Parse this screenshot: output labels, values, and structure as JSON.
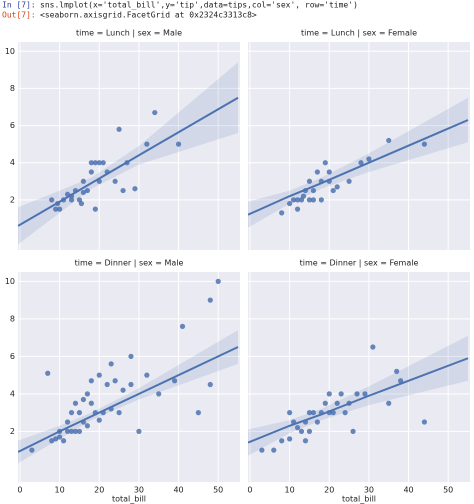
{
  "header": {
    "input_prompt": "In [7]:",
    "input_code": "sns.lmplot(x='total_bill',y='tip',data=tips,col='sex', row='time')",
    "output_prompt": "Out[7]:",
    "output_text": "<seaborn.axisgrid.FacetGrid at 0x2324c3313c8>"
  },
  "chart_data": {
    "type": "scatter",
    "xlabel": "total_bill",
    "color": "#4c72b0",
    "grid": true,
    "xlim": [
      -0.5,
      55.5
    ],
    "ylim": [
      -0.7,
      10.5
    ],
    "xticks": [
      0,
      10,
      20,
      30,
      40,
      50
    ],
    "yticks": [
      2,
      4,
      6,
      8,
      10
    ],
    "panels": [
      {
        "title": "time = Lunch | sex = Male",
        "x": [
          8,
          9,
          9.5,
          10,
          11,
          12,
          13,
          13,
          14,
          15,
          15.5,
          16,
          17,
          18,
          18,
          19,
          20,
          21,
          20,
          22,
          24,
          25,
          26,
          27,
          29,
          32,
          34,
          40,
          19,
          16
        ],
        "y": [
          2,
          1.5,
          1.8,
          1.5,
          2,
          2.3,
          2,
          2.2,
          2.5,
          2,
          1.8,
          3,
          2.5,
          4,
          3.5,
          4,
          4,
          4,
          3,
          3.5,
          3,
          5.8,
          2.5,
          4,
          2.6,
          5,
          6.7,
          5,
          1.5,
          2.4
        ],
        "fit_x": [
          -0.5,
          10,
          18,
          30,
          55
        ],
        "fit_y": [
          0.6,
          1.9,
          2.9,
          4.4,
          7.5
        ],
        "band_lower": [
          -0.4,
          1.3,
          2.6,
          3.9,
          5.6
        ],
        "band_upper": [
          1.6,
          2.5,
          3.2,
          4.9,
          9.4
        ]
      },
      {
        "title": "time = Lunch | sex = Female",
        "x": [
          8,
          10,
          11,
          12,
          12,
          13,
          13.5,
          14,
          15,
          15,
          16,
          16,
          17,
          18,
          18,
          19,
          20,
          21,
          20,
          22,
          25,
          28,
          30,
          35,
          44
        ],
        "y": [
          1.3,
          1.8,
          2,
          1.5,
          2,
          2,
          2.2,
          2.5,
          2,
          3,
          2,
          2.5,
          3.5,
          3,
          2,
          4,
          3,
          2.5,
          3.5,
          2.7,
          3,
          4,
          4.2,
          5.2,
          5
        ],
        "fit_x": [
          -0.5,
          10,
          18,
          30,
          55
        ],
        "fit_y": [
          1.2,
          2.2,
          2.9,
          4.0,
          6.3
        ],
        "band_lower": [
          0.5,
          1.8,
          2.6,
          3.5,
          5.1
        ],
        "band_upper": [
          1.9,
          2.5,
          3.2,
          4.5,
          7.5
        ]
      },
      {
        "title": "time = Dinner | sex = Male",
        "x": [
          3,
          7,
          8,
          9,
          10,
          10,
          11,
          12,
          12,
          13,
          13,
          14,
          14,
          15,
          15,
          16,
          16,
          17,
          17,
          18,
          18,
          19,
          20,
          20,
          21,
          22,
          23,
          23,
          24,
          25,
          26,
          28,
          28,
          30,
          32,
          35,
          39,
          41,
          48,
          50,
          48,
          45
        ],
        "y": [
          1,
          5.1,
          1.5,
          1.6,
          1.7,
          2,
          1.5,
          2,
          2.5,
          2,
          3,
          2,
          3.5,
          2,
          3,
          2.5,
          3.7,
          2.3,
          4,
          3.5,
          4.7,
          3,
          2.6,
          5,
          3,
          4.5,
          3.2,
          5.6,
          4.7,
          3,
          4.2,
          4.5,
          6,
          2,
          5,
          4,
          4.7,
          7.6,
          9,
          10,
          4.5,
          3
        ],
        "fit_x": [
          -0.5,
          10,
          18,
          30,
          55
        ],
        "fit_y": [
          0.9,
          2.0,
          2.8,
          4.0,
          6.5
        ],
        "band_lower": [
          0.3,
          1.6,
          2.6,
          3.7,
          5.6
        ],
        "band_upper": [
          1.5,
          2.3,
          3.0,
          4.3,
          7.4
        ]
      },
      {
        "title": "time = Dinner | sex = Female",
        "x": [
          3,
          6,
          8,
          10,
          11,
          12,
          13,
          14,
          15,
          15,
          16,
          17,
          18,
          19,
          20,
          20,
          21,
          22,
          23,
          24,
          25,
          26,
          27,
          29,
          31,
          35,
          37,
          38,
          44,
          10,
          14
        ],
        "y": [
          1,
          1,
          1.5,
          1.6,
          2.5,
          2.2,
          2,
          2.5,
          3,
          2,
          3,
          2.5,
          3,
          3.5,
          3,
          4,
          3,
          3.5,
          4,
          3,
          3.5,
          2,
          4,
          4,
          6.5,
          3.5,
          5.2,
          4.7,
          2.5,
          3,
          1.5
        ],
        "fit_x": [
          -0.5,
          10,
          18,
          30,
          55
        ],
        "fit_y": [
          1.4,
          2.3,
          2.9,
          3.9,
          5.9
        ],
        "band_lower": [
          0.7,
          1.9,
          2.6,
          3.4,
          4.7
        ],
        "band_upper": [
          2.1,
          2.6,
          3.2,
          4.4,
          7.1
        ]
      }
    ]
  }
}
